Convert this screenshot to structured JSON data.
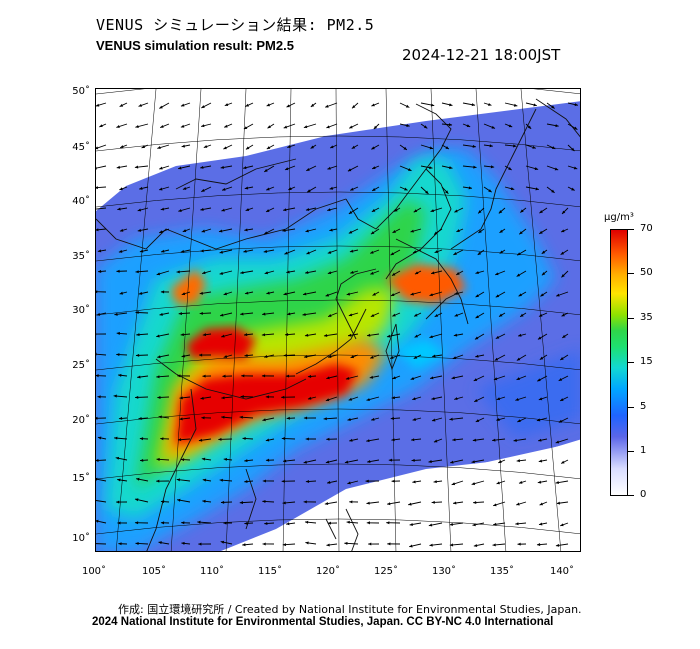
{
  "title": {
    "jp": "VENUS シミュレーション結果: PM2.5",
    "en": "VENUS simulation result: PM2.5",
    "datetime": "2024-12-21 18:00JST"
  },
  "map": {
    "variable": "PM2.5",
    "lon_range": [
      100,
      142
    ],
    "lat_range": [
      9,
      51
    ],
    "lat_ticks": [
      "50˚",
      "45˚",
      "40˚",
      "35˚",
      "30˚",
      "25˚",
      "20˚",
      "15˚",
      "10˚"
    ],
    "lon_ticks": [
      "100˚",
      "105˚",
      "110˚",
      "115˚",
      "120˚",
      "125˚",
      "130˚",
      "135˚",
      "140˚"
    ],
    "features": [
      "wind-vectors",
      "coastlines",
      "graticule",
      "pm25-concentration-field"
    ]
  },
  "colorbar": {
    "unit": "μg/m³",
    "ticks": [
      "70",
      "50",
      "35",
      "15",
      "5",
      "1",
      "0"
    ],
    "colors": [
      "#e00000",
      "#ff5a00",
      "#ffe400",
      "#2fd64a",
      "#00a6ff",
      "#1f64ff",
      "#d8dcff",
      "#ffffff"
    ]
  },
  "credits": {
    "line1": "作成: 国立環境研究所 / Created by National Institute for Environmental Studies, Japan.",
    "line2": "2024 National Institute for Environmental Studies, Japan. CC BY-NC 4.0 International"
  }
}
